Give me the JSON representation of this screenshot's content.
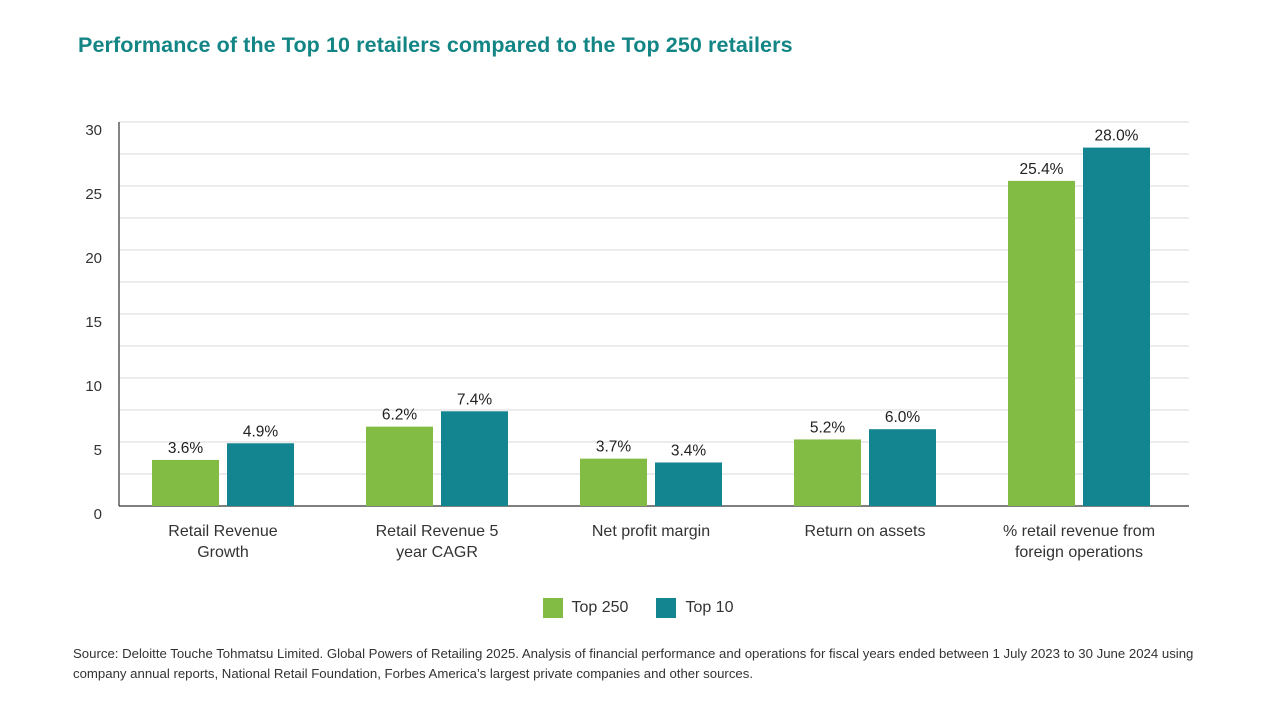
{
  "title": "Performance of the Top 10 retailers compared to the Top 250 retailers",
  "source": "Source: Deloitte Touche Tohmatsu Limited. Global Powers of Retailing 2025. Analysis of financial performance and operations for fiscal years ended between 1 July 2023 to 30 June 2024 using company annual reports, National Retail Foundation, Forbes America’s largest private companies and other sources.",
  "colors": {
    "title": "#138585",
    "top250": "#82bc45",
    "top10": "#138591"
  },
  "chart_data": {
    "type": "bar",
    "title": "Performance of the Top 10 retailers compared to the Top 250 retailers",
    "xlabel": "",
    "ylabel": "",
    "ylim": [
      0,
      30
    ],
    "yticks": [
      0,
      5,
      10,
      15,
      20,
      25,
      30
    ],
    "grid": true,
    "legend_position": "bottom-center",
    "categories": [
      [
        "Retail Revenue",
        "Growth"
      ],
      [
        "Retail Revenue 5",
        "year CAGR"
      ],
      [
        "Net profit margin"
      ],
      [
        "Return on assets"
      ],
      [
        "% retail revenue from",
        "foreign operations"
      ]
    ],
    "series": [
      {
        "name": "Top 250",
        "color": "#82bc45",
        "values": [
          3.6,
          6.2,
          3.7,
          5.2,
          25.4
        ],
        "labels": [
          "3.6%",
          "6.2%",
          "3.7%",
          "5.2%",
          "25.4%"
        ]
      },
      {
        "name": "Top 10",
        "color": "#138591",
        "values": [
          4.9,
          7.4,
          3.4,
          6.0,
          28.0
        ],
        "labels": [
          "4.9%",
          "7.4%",
          "3.4%",
          "6.0%",
          "28.0%"
        ]
      }
    ]
  }
}
